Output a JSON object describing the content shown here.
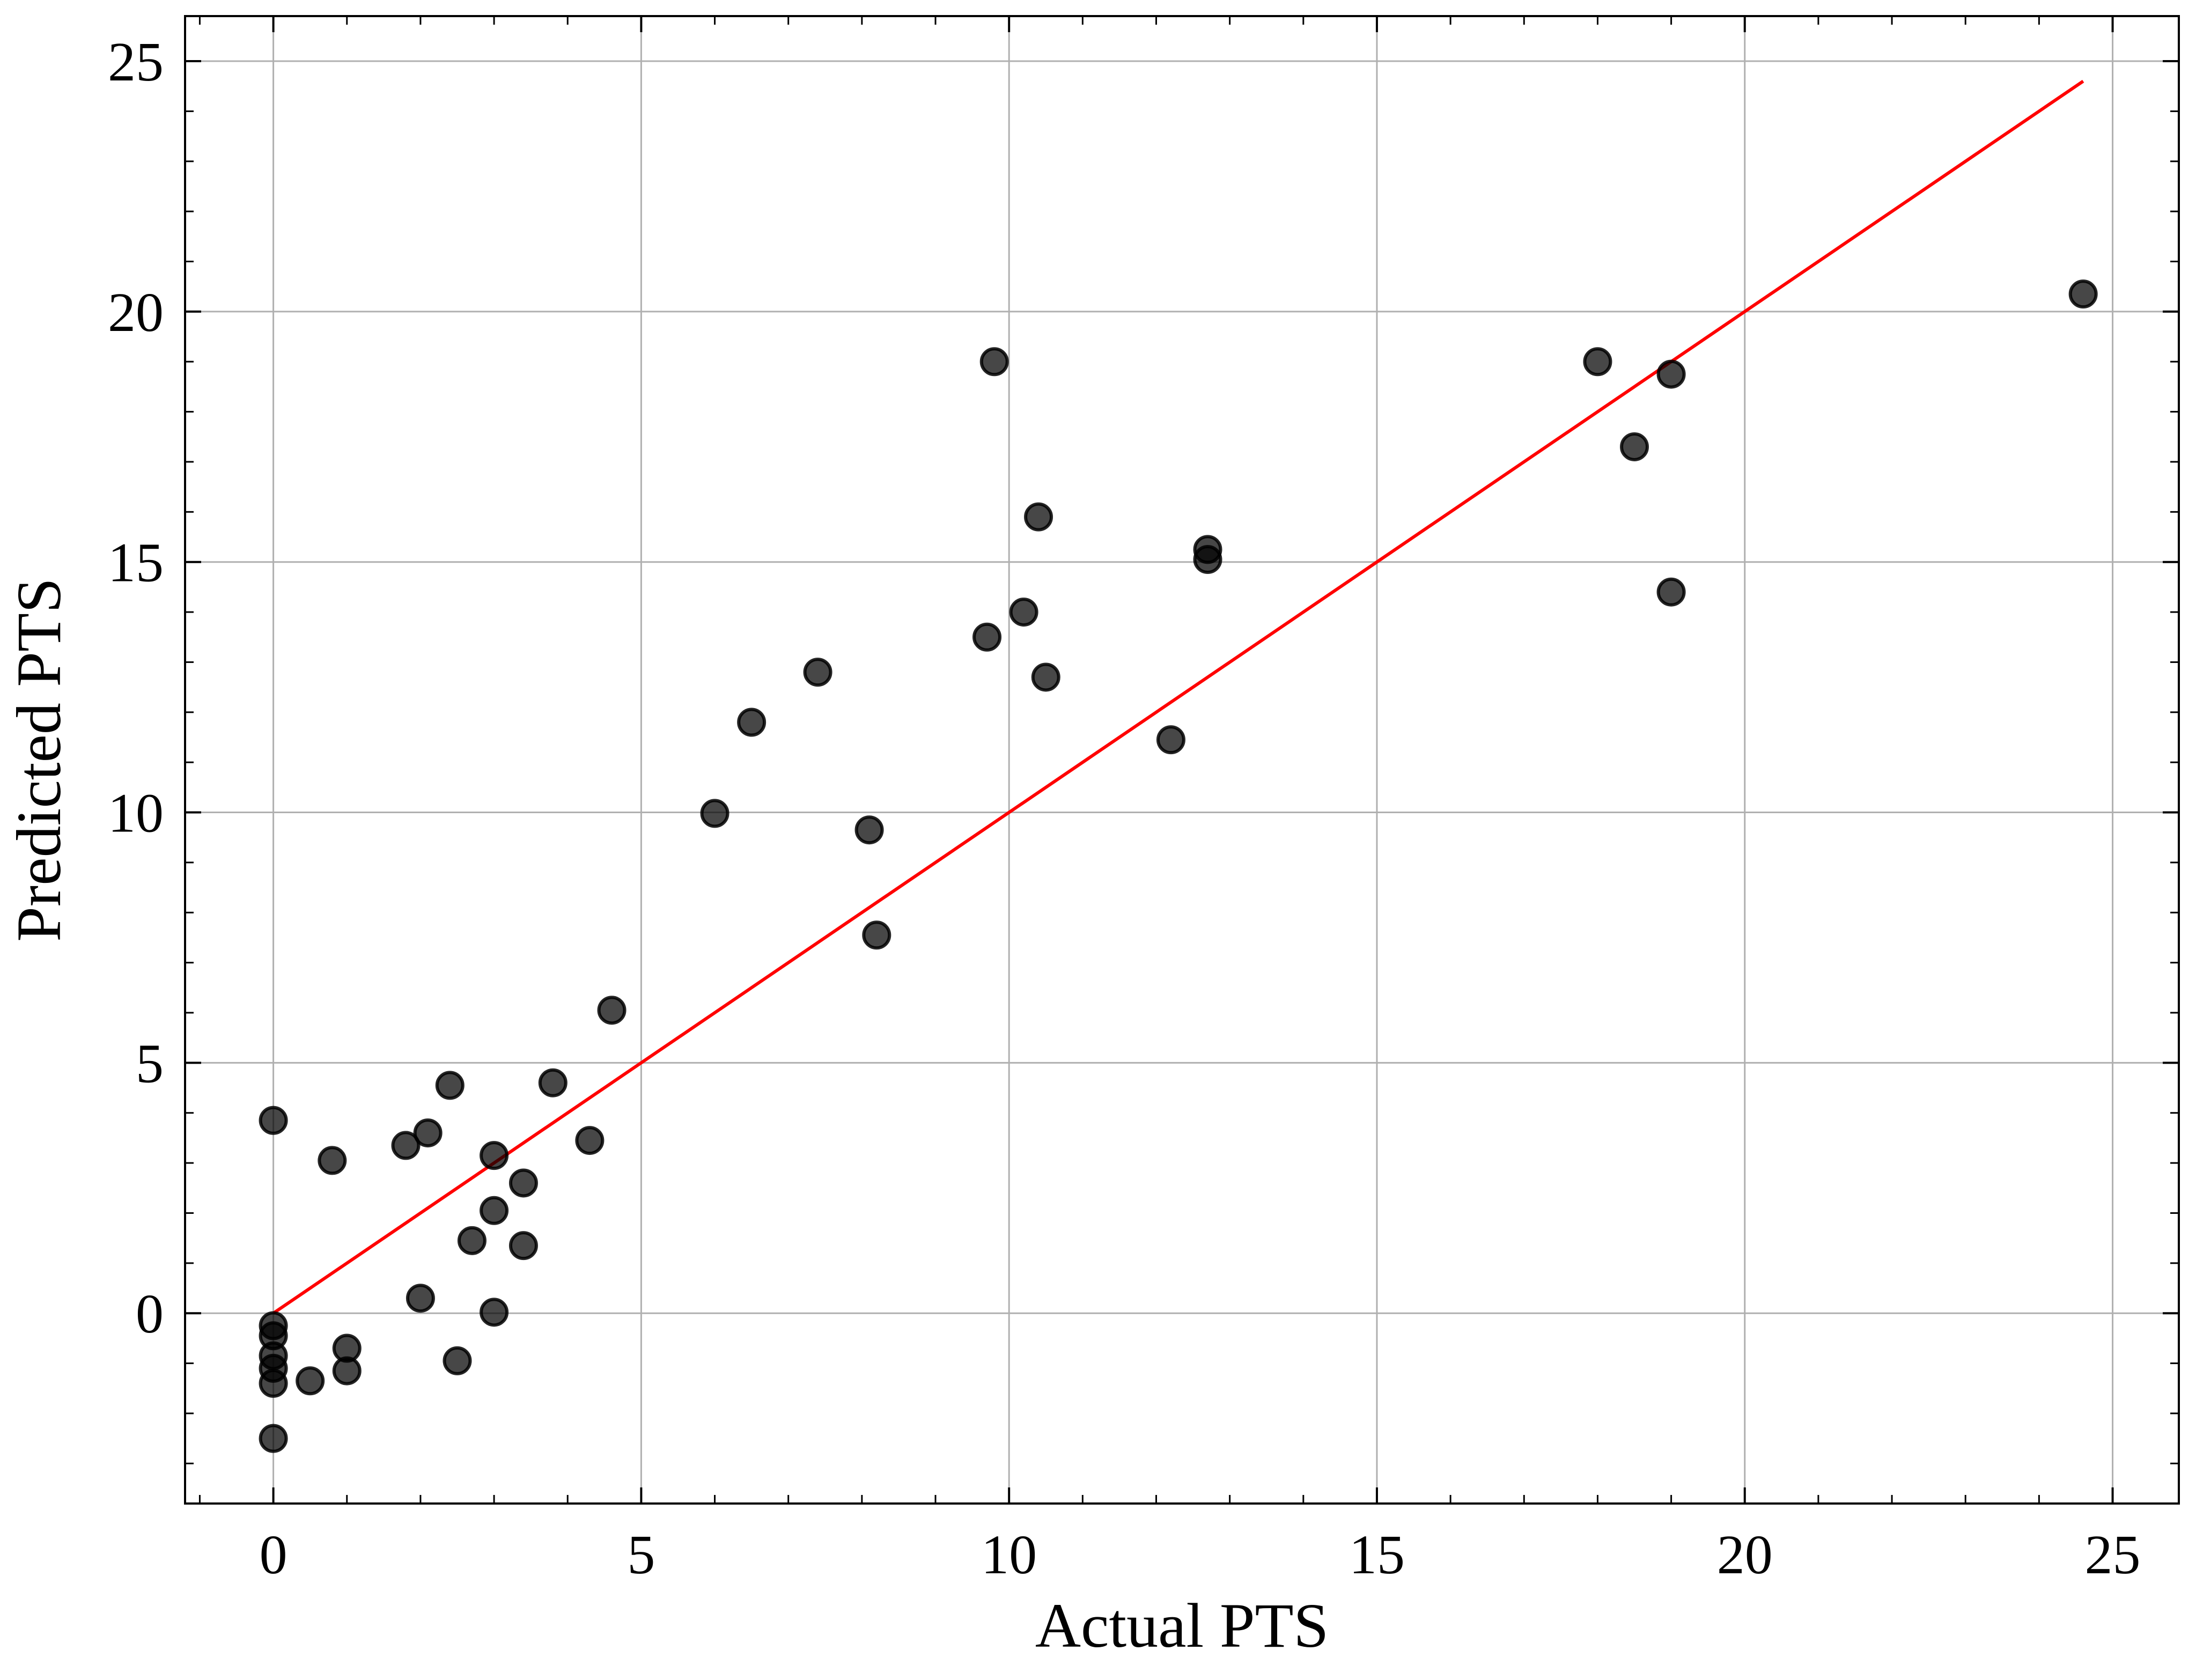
{
  "chart_data": {
    "type": "scatter",
    "title": "",
    "xlabel": "Actual PTS",
    "ylabel": "Predicted PTS",
    "xlim": [
      -1.2,
      25.9
    ],
    "ylim": [
      -3.8,
      25.9
    ],
    "xticks": [
      0,
      5,
      10,
      15,
      20,
      25
    ],
    "yticks": [
      0,
      5,
      10,
      15,
      20,
      25
    ],
    "xtick_labels": [
      "0",
      "5",
      "10",
      "15",
      "20",
      "25"
    ],
    "ytick_labels": [
      "0",
      "5",
      "10",
      "15",
      "20",
      "25"
    ],
    "x_minor_step": 1,
    "y_minor_step": 1,
    "grid": true,
    "point_color": "#000000",
    "line_color": "#ff0000",
    "reference_line": {
      "x": [
        0,
        24.6
      ],
      "y": [
        0,
        24.6
      ]
    },
    "points": [
      {
        "x": 0,
        "y": 3.85
      },
      {
        "x": 0,
        "y": -0.25
      },
      {
        "x": 0,
        "y": -0.45
      },
      {
        "x": 0,
        "y": -0.85
      },
      {
        "x": 0,
        "y": -1.1
      },
      {
        "x": 0,
        "y": -1.4
      },
      {
        "x": 0,
        "y": -2.5
      },
      {
        "x": 0.5,
        "y": -1.35
      },
      {
        "x": 0.8,
        "y": 3.05
      },
      {
        "x": 1.0,
        "y": -0.7
      },
      {
        "x": 1.0,
        "y": -1.15
      },
      {
        "x": 1.8,
        "y": 3.35
      },
      {
        "x": 2.0,
        "y": 0.3
      },
      {
        "x": 2.1,
        "y": 3.6
      },
      {
        "x": 2.4,
        "y": 4.55
      },
      {
        "x": 2.5,
        "y": -0.95
      },
      {
        "x": 2.7,
        "y": 1.45
      },
      {
        "x": 3.0,
        "y": 3.15
      },
      {
        "x": 3.0,
        "y": 2.05
      },
      {
        "x": 3.0,
        "y": 0.02
      },
      {
        "x": 3.4,
        "y": 2.6
      },
      {
        "x": 3.4,
        "y": 1.35
      },
      {
        "x": 3.8,
        "y": 4.6
      },
      {
        "x": 4.3,
        "y": 3.45
      },
      {
        "x": 4.6,
        "y": 6.05
      },
      {
        "x": 6.0,
        "y": 9.98
      },
      {
        "x": 6.5,
        "y": 11.8
      },
      {
        "x": 7.4,
        "y": 12.8
      },
      {
        "x": 8.1,
        "y": 9.65
      },
      {
        "x": 8.2,
        "y": 7.55
      },
      {
        "x": 9.7,
        "y": 13.5
      },
      {
        "x": 9.8,
        "y": 19.0
      },
      {
        "x": 10.2,
        "y": 14.0
      },
      {
        "x": 10.4,
        "y": 15.9
      },
      {
        "x": 10.5,
        "y": 12.7
      },
      {
        "x": 12.2,
        "y": 11.45
      },
      {
        "x": 12.7,
        "y": 15.25
      },
      {
        "x": 12.7,
        "y": 15.05
      },
      {
        "x": 18.0,
        "y": 19.0
      },
      {
        "x": 18.5,
        "y": 17.3
      },
      {
        "x": 19.0,
        "y": 18.75
      },
      {
        "x": 19.0,
        "y": 14.4
      },
      {
        "x": 24.6,
        "y": 20.35
      }
    ]
  }
}
